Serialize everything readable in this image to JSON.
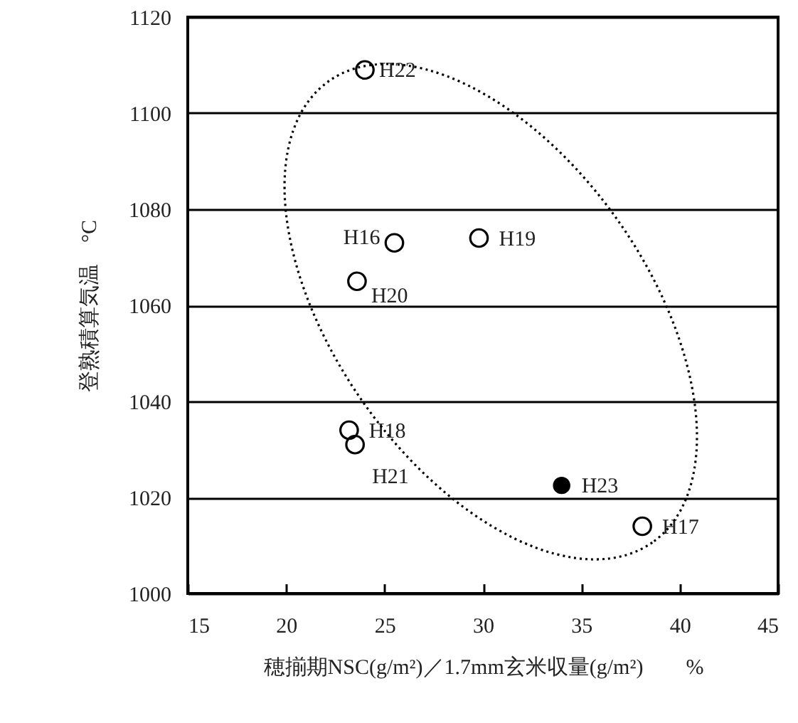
{
  "chart_data": {
    "type": "scatter",
    "xlabel": "穂揃期NSC(g/m²)／1.7mm玄米収量(g/m²)　　%",
    "ylabel": "登熟積算気温　°C",
    "series": [
      {
        "color": "#000000",
        "x": [
          24.0,
          25.5,
          29.8,
          23.6,
          23.2,
          23.5,
          38.1
        ],
        "values": [
          1109,
          1073,
          1074,
          1065,
          1034,
          1031,
          1014
        ]
      },
      {
        "color": "#000000",
        "x": [
          34.0
        ],
        "values": [
          1022.5
        ]
      }
    ],
    "annotations": [
      {
        "text": "H22",
        "x": 24.0,
        "y": 1109
      },
      {
        "text": "H16",
        "x": 25.5,
        "y": 1073
      },
      {
        "text": "H19",
        "x": 29.8,
        "y": 1074
      },
      {
        "text": "H20",
        "x": 23.6,
        "y": 1065
      },
      {
        "text": "H18",
        "x": 23.2,
        "y": 1034
      },
      {
        "text": "H21",
        "x": 23.5,
        "y": 1031
      },
      {
        "text": "H23",
        "x": 34.0,
        "y": 1022.5
      },
      {
        "text": "H17",
        "x": 38.1,
        "y": 1014
      }
    ],
    "xlim": [
      15,
      45
    ],
    "xticks": [
      15,
      20,
      25,
      30,
      35,
      40,
      45
    ],
    "ylim": [
      1000,
      1120
    ],
    "yticks": [
      1000,
      1020,
      1040,
      1060,
      1080,
      1100,
      1120
    ],
    "grid": "y",
    "marker": "circle"
  }
}
